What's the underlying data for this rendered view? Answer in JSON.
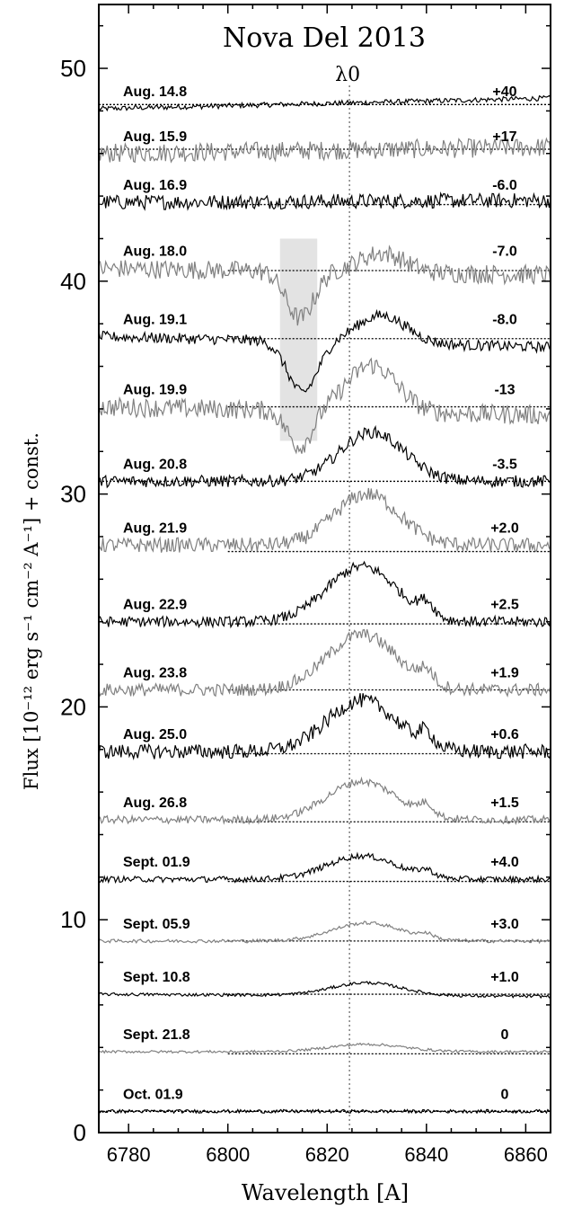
{
  "chart_data": {
    "type": "line",
    "title": "Nova Del 2013",
    "xlabel": "Wavelength [A]",
    "ylabel": "Flux [10⁻¹² erg s⁻¹ cm⁻² A⁻¹] + const.",
    "xlim": [
      6774,
      6865
    ],
    "ylim": [
      0,
      53
    ],
    "x_ticks": [
      6780,
      6800,
      6820,
      6840,
      6860
    ],
    "y_ticks": [
      0,
      10,
      20,
      30,
      40,
      50
    ],
    "lambda0": {
      "label": "λ0",
      "x": 6824.5
    },
    "shaded_region": {
      "x": [
        6810.5,
        6818
      ],
      "y": [
        32.5,
        42
      ]
    },
    "colors": {
      "dark": "#000000",
      "gray": "#808080",
      "shade": "#e3e3e3"
    },
    "series": [
      {
        "date": "Aug. 14.8",
        "velocity": "+40",
        "baseline": 48.3,
        "continuum": [
          6774,
          48.1,
          6865,
          48.6
        ],
        "color": "dark",
        "noise": 0.12,
        "baseline_start": null,
        "features": []
      },
      {
        "date": "Aug. 15.9",
        "velocity": "+17",
        "baseline": 46.2,
        "continuum": [
          6774,
          46.0,
          6865,
          46.3
        ],
        "color": "gray",
        "noise": 0.45,
        "baseline_start": null,
        "features": []
      },
      {
        "date": "Aug. 16.9",
        "velocity": "-6.0",
        "baseline": 43.6,
        "continuum": [
          6774,
          43.7,
          6865,
          43.8
        ],
        "color": "dark",
        "noise": 0.35,
        "baseline_start": 6800,
        "features": []
      },
      {
        "date": "Aug. 18.0",
        "velocity": "-7.0",
        "baseline": 40.5,
        "continuum": [
          6774,
          40.6,
          6865,
          40.3
        ],
        "color": "gray",
        "noise": 0.45,
        "baseline_start": 6800,
        "features": [
          [
            6814.5,
            2.8,
            -2.2
          ],
          [
            6831,
            4.5,
            0.9
          ]
        ]
      },
      {
        "date": "Aug. 19.1",
        "velocity": "-8.0",
        "baseline": 37.3,
        "continuum": [
          6774,
          37.4,
          6865,
          36.9
        ],
        "color": "dark",
        "noise": 0.25,
        "baseline_start": 6800,
        "features": [
          [
            6815,
            3.0,
            -2.4
          ],
          [
            6831,
            5.0,
            1.3
          ]
        ]
      },
      {
        "date": "Aug. 19.9",
        "velocity": "-13",
        "baseline": 34.1,
        "continuum": [
          6774,
          34.1,
          6865,
          33.7
        ],
        "color": "gray",
        "noise": 0.45,
        "baseline_start": 6800,
        "features": [
          [
            6814.5,
            2.5,
            -1.7
          ],
          [
            6829,
            5.0,
            2.2
          ]
        ]
      },
      {
        "date": "Aug. 20.8",
        "velocity": "-3.5",
        "baseline": 30.6,
        "continuum": [
          6774,
          30.6,
          6865,
          30.6
        ],
        "color": "dark",
        "noise": 0.28,
        "baseline_start": null,
        "features": [
          [
            6829,
            6.5,
            2.3
          ]
        ]
      },
      {
        "date": "Aug. 21.9",
        "velocity": "+2.0",
        "baseline": 27.3,
        "continuum": [
          6774,
          27.6,
          6865,
          27.6
        ],
        "color": "gray",
        "noise": 0.35,
        "baseline_start": 6800,
        "features": [
          [
            6828,
            6.5,
            2.4
          ]
        ]
      },
      {
        "date": "Aug. 22.9",
        "velocity": "+2.5",
        "baseline": 23.9,
        "continuum": [
          6774,
          24.0,
          6865,
          24.0
        ],
        "color": "dark",
        "noise": 0.25,
        "baseline_start": 6800,
        "features": [
          [
            6827,
            7.0,
            2.6
          ],
          [
            6840,
            1.5,
            0.6
          ]
        ]
      },
      {
        "date": "Aug. 23.8",
        "velocity": "+1.9",
        "baseline": 20.8,
        "continuum": [
          6774,
          20.8,
          6865,
          20.8
        ],
        "color": "gray",
        "noise": 0.3,
        "baseline_start": 6800,
        "features": [
          [
            6827,
            7.0,
            2.6
          ],
          [
            6840,
            1.5,
            0.6
          ]
        ]
      },
      {
        "date": "Aug. 25.0",
        "velocity": "+0.6",
        "baseline": 17.8,
        "continuum": [
          6774,
          17.9,
          6865,
          17.9
        ],
        "color": "dark",
        "noise": 0.35,
        "baseline_start": 6800,
        "features": [
          [
            6827,
            7.0,
            2.4
          ],
          [
            6840,
            1.5,
            0.6
          ]
        ]
      },
      {
        "date": "Aug. 26.8",
        "velocity": "+1.5",
        "baseline": 14.6,
        "continuum": [
          6774,
          14.7,
          6865,
          14.7
        ],
        "color": "gray",
        "noise": 0.18,
        "baseline_start": 6800,
        "features": [
          [
            6827,
            7.0,
            1.8
          ],
          [
            6840,
            1.5,
            0.5
          ]
        ]
      },
      {
        "date": "Sept. 01.9",
        "velocity": "+4.0",
        "baseline": 11.8,
        "continuum": [
          6774,
          11.9,
          6865,
          11.9
        ],
        "color": "dark",
        "noise": 0.14,
        "baseline_start": 6800,
        "features": [
          [
            6827,
            7.0,
            1.1
          ],
          [
            6840,
            1.5,
            0.3
          ]
        ]
      },
      {
        "date": "Sept. 05.9",
        "velocity": "+3.0",
        "baseline": 9.0,
        "continuum": [
          6774,
          9.0,
          6865,
          9.0
        ],
        "color": "gray",
        "noise": 0.08,
        "baseline_start": 6800,
        "features": [
          [
            6828,
            7.0,
            0.85
          ],
          [
            6840,
            1.5,
            0.2
          ]
        ]
      },
      {
        "date": "Sept. 10.8",
        "velocity": "+1.0",
        "baseline": 6.5,
        "continuum": [
          6774,
          6.5,
          6865,
          6.4
        ],
        "color": "dark",
        "noise": 0.07,
        "baseline_start": 6800,
        "features": [
          [
            6828,
            7.0,
            0.6
          ]
        ]
      },
      {
        "date": "Sept. 21.8",
        "velocity": "0",
        "baseline": 3.7,
        "continuum": [
          6774,
          3.8,
          6865,
          3.8
        ],
        "color": "gray",
        "noise": 0.06,
        "baseline_start": 6800,
        "features": [
          [
            6828,
            7.5,
            0.35
          ]
        ]
      },
      {
        "date": "Oct. 01.9",
        "velocity": "0",
        "baseline": 1.0,
        "continuum": [
          6774,
          1.0,
          6865,
          1.0
        ],
        "color": "dark",
        "noise": 0.08,
        "baseline_start": null,
        "features": []
      }
    ]
  }
}
